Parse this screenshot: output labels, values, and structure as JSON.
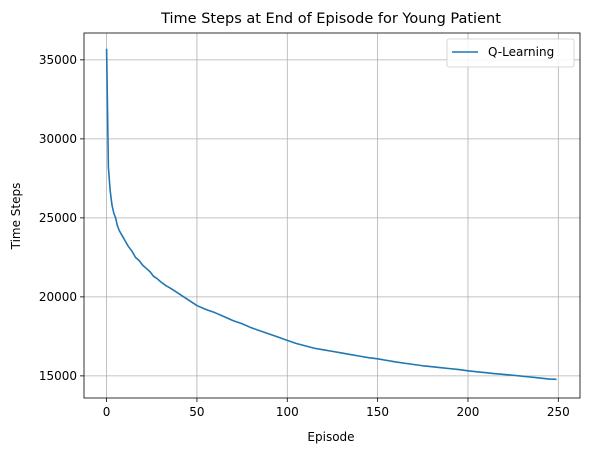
{
  "chart_data": {
    "type": "line",
    "title": "Time Steps at End of Episode for Young Patient",
    "xlabel": "Episode",
    "ylabel": "Time Steps",
    "xlim": [
      -12.5,
      262
    ],
    "ylim": [
      13600,
      36700
    ],
    "xticks": [
      0,
      50,
      100,
      150,
      200,
      250
    ],
    "yticks": [
      15000,
      20000,
      25000,
      30000,
      35000
    ],
    "grid": true,
    "legend_position": "top-right",
    "series": [
      {
        "name": "Q-Learning",
        "color": "#1f77b4",
        "x": [
          0,
          1,
          2,
          3,
          4,
          5,
          6,
          7,
          8,
          9,
          10,
          12,
          14,
          16,
          18,
          20,
          22,
          24,
          26,
          28,
          30,
          33,
          36,
          40,
          44,
          48,
          50,
          55,
          60,
          65,
          70,
          75,
          80,
          85,
          90,
          95,
          100,
          105,
          110,
          115,
          120,
          125,
          130,
          135,
          140,
          145,
          150,
          155,
          160,
          165,
          170,
          175,
          180,
          185,
          190,
          195,
          200,
          205,
          210,
          215,
          220,
          225,
          230,
          235,
          240,
          245,
          249
        ],
        "y": [
          35700,
          28200,
          26700,
          25800,
          25300,
          25000,
          24500,
          24200,
          24000,
          23800,
          23600,
          23200,
          22900,
          22500,
          22300,
          22000,
          21800,
          21600,
          21300,
          21150,
          20950,
          20700,
          20500,
          20200,
          19900,
          19600,
          19450,
          19200,
          19000,
          18750,
          18500,
          18300,
          18050,
          17850,
          17650,
          17450,
          17250,
          17050,
          16900,
          16750,
          16650,
          16550,
          16450,
          16350,
          16250,
          16150,
          16080,
          15980,
          15880,
          15800,
          15720,
          15640,
          15580,
          15520,
          15460,
          15400,
          15320,
          15260,
          15200,
          15140,
          15090,
          15040,
          14980,
          14920,
          14860,
          14800,
          14780
        ]
      }
    ]
  }
}
